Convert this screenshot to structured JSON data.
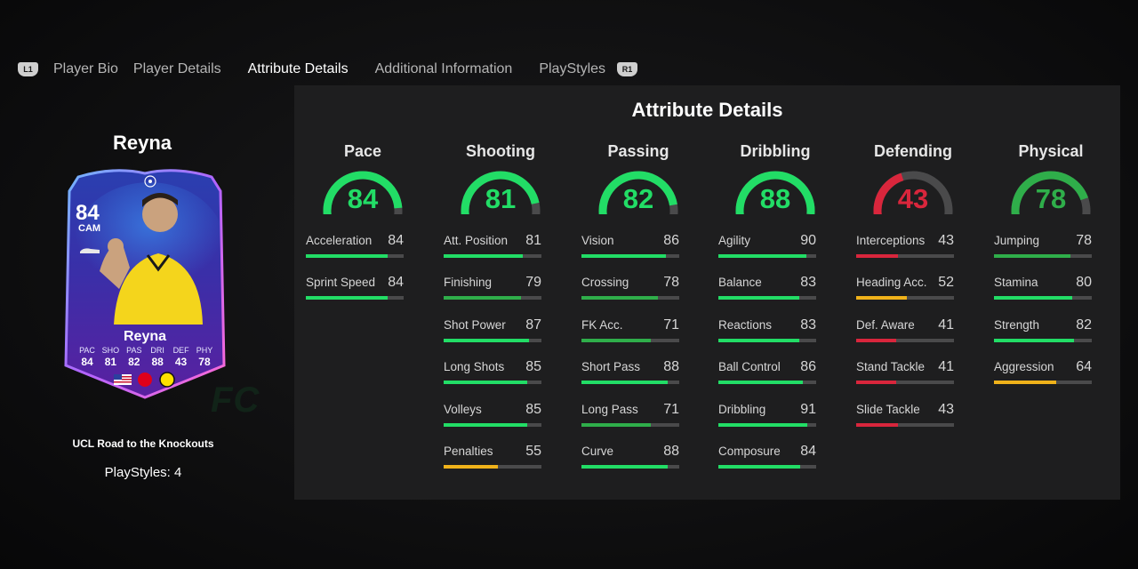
{
  "tabs": {
    "left_trigger": "L1",
    "right_trigger": "R1",
    "items": [
      {
        "label": "Player Bio",
        "active": false
      },
      {
        "label": "Player Details",
        "active": false
      },
      {
        "label": "Attribute Details",
        "active": true
      },
      {
        "label": "Additional Information",
        "active": false
      },
      {
        "label": "PlayStyles",
        "active": false
      }
    ]
  },
  "player": {
    "name": "Reyna",
    "card": {
      "rating": "84",
      "position": "CAM",
      "name": "Reyna",
      "stats": [
        {
          "label": "PAC",
          "value": "84"
        },
        {
          "label": "SHO",
          "value": "81"
        },
        {
          "label": "PAS",
          "value": "82"
        },
        {
          "label": "DRI",
          "value": "88"
        },
        {
          "label": "DEF",
          "value": "43"
        },
        {
          "label": "PHY",
          "value": "78"
        }
      ]
    },
    "card_title": "UCL Road to the Knockouts",
    "playstyles_count": "PlayStyles: 4"
  },
  "watermark": "FC",
  "panel": {
    "title": "Attribute Details",
    "colors": {
      "green": "#22dd66",
      "mid_green": "#2fae4a",
      "yellow": "#f0b21a",
      "red": "#d9263c",
      "track": "#4a4a4b"
    },
    "groups": [
      {
        "name": "Pace",
        "value": 84,
        "tier": "green",
        "stats": [
          {
            "label": "Acceleration",
            "value": 84,
            "tier": "green"
          },
          {
            "label": "Sprint Speed",
            "value": 84,
            "tier": "green"
          }
        ]
      },
      {
        "name": "Shooting",
        "value": 81,
        "tier": "green",
        "stats": [
          {
            "label": "Att. Position",
            "value": 81,
            "tier": "green"
          },
          {
            "label": "Finishing",
            "value": 79,
            "tier": "mid_green"
          },
          {
            "label": "Shot Power",
            "value": 87,
            "tier": "green"
          },
          {
            "label": "Long Shots",
            "value": 85,
            "tier": "green"
          },
          {
            "label": "Volleys",
            "value": 85,
            "tier": "green"
          },
          {
            "label": "Penalties",
            "value": 55,
            "tier": "yellow"
          }
        ]
      },
      {
        "name": "Passing",
        "value": 82,
        "tier": "green",
        "stats": [
          {
            "label": "Vision",
            "value": 86,
            "tier": "green"
          },
          {
            "label": "Crossing",
            "value": 78,
            "tier": "mid_green"
          },
          {
            "label": "FK Acc.",
            "value": 71,
            "tier": "mid_green"
          },
          {
            "label": "Short Pass",
            "value": 88,
            "tier": "green"
          },
          {
            "label": "Long Pass",
            "value": 71,
            "tier": "mid_green"
          },
          {
            "label": "Curve",
            "value": 88,
            "tier": "green"
          }
        ]
      },
      {
        "name": "Dribbling",
        "value": 88,
        "tier": "green",
        "stats": [
          {
            "label": "Agility",
            "value": 90,
            "tier": "green"
          },
          {
            "label": "Balance",
            "value": 83,
            "tier": "green"
          },
          {
            "label": "Reactions",
            "value": 83,
            "tier": "green"
          },
          {
            "label": "Ball Control",
            "value": 86,
            "tier": "green"
          },
          {
            "label": "Dribbling",
            "value": 91,
            "tier": "green"
          },
          {
            "label": "Composure",
            "value": 84,
            "tier": "green"
          }
        ]
      },
      {
        "name": "Defending",
        "value": 43,
        "tier": "red",
        "stats": [
          {
            "label": "Interceptions",
            "value": 43,
            "tier": "red"
          },
          {
            "label": "Heading Acc.",
            "value": 52,
            "tier": "yellow"
          },
          {
            "label": "Def. Aware",
            "value": 41,
            "tier": "red"
          },
          {
            "label": "Stand Tackle",
            "value": 41,
            "tier": "red"
          },
          {
            "label": "Slide Tackle",
            "value": 43,
            "tier": "red"
          }
        ]
      },
      {
        "name": "Physical",
        "value": 78,
        "tier": "mid_green",
        "stats": [
          {
            "label": "Jumping",
            "value": 78,
            "tier": "mid_green"
          },
          {
            "label": "Stamina",
            "value": 80,
            "tier": "green"
          },
          {
            "label": "Strength",
            "value": 82,
            "tier": "green"
          },
          {
            "label": "Aggression",
            "value": 64,
            "tier": "yellow"
          }
        ]
      }
    ]
  }
}
